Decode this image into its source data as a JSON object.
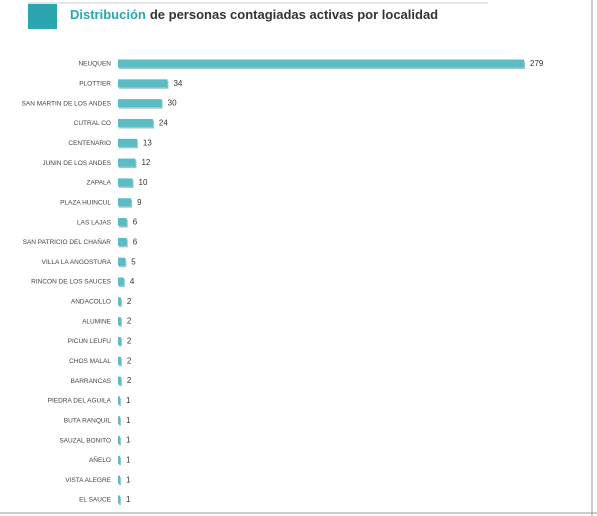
{
  "chart_data": {
    "type": "bar",
    "orientation": "horizontal",
    "title_highlight": "Distribución",
    "title": "de personas contagiadas activas por localidad",
    "categories": [
      "NEUQUEN",
      "PLOTTIER",
      "SAN MARTIN DE LOS ANDES",
      "CUTRAL CO",
      "CENTENARIO",
      "JUNIN DE LOS ANDES",
      "ZAPALA",
      "PLAZA HUINCUL",
      "LAS LAJAS",
      "SAN PATRICIO DEL CHAÑAR",
      "VILLA LA ANGOSTURA",
      "RINCON DE LOS SAUCES",
      "ANDACOLLO",
      "ALUMINE",
      "PICUN LEUFU",
      "CHOS MALAL",
      "BARRANCAS",
      "PIEDRA DEL AGUILA",
      "BUTA RANQUIL",
      "SAUZAL BONITO",
      "AÑELO",
      "VISTA ALEGRE",
      "EL SAUCE"
    ],
    "values": [
      279,
      34,
      30,
      24,
      13,
      12,
      10,
      9,
      6,
      6,
      5,
      4,
      2,
      2,
      2,
      2,
      2,
      1,
      1,
      1,
      1,
      1,
      1
    ],
    "color": "#5bbcc4",
    "title_color": "#2aa6b0"
  }
}
